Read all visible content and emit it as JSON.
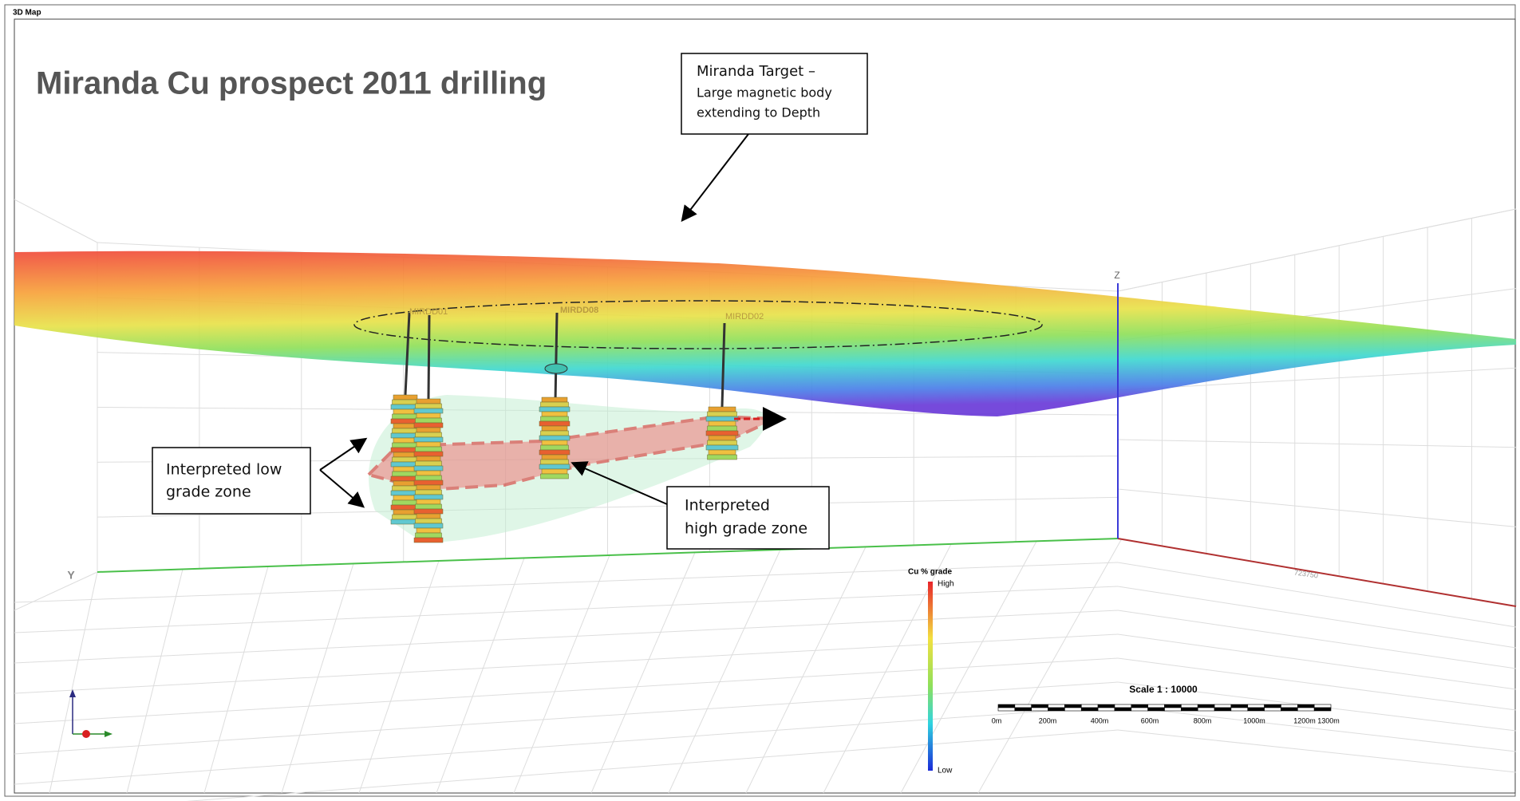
{
  "panel_title": "3D Map",
  "title": "Miranda Cu prospect 2011 drilling",
  "callouts": {
    "target": [
      "Miranda Target –",
      "Large magnetic body",
      "extending to Depth"
    ],
    "low_grade": [
      "Interpreted low",
      "grade zone"
    ],
    "high_grade": [
      "Interpreted",
      "high grade zone"
    ]
  },
  "drillholes": [
    "MIRDD01",
    "MIRDD08",
    "MIRDD02"
  ],
  "axes": {
    "z": "Z",
    "y": "Y",
    "x_tick": "723750"
  },
  "legend": {
    "title": "Cu % grade",
    "high": "High",
    "low": "Low"
  },
  "scale": {
    "title": "Scale 1 : 10000",
    "labels": [
      "0m",
      "200m",
      "400m",
      "600m",
      "800m",
      "1000m",
      "1200m 1300m"
    ]
  }
}
